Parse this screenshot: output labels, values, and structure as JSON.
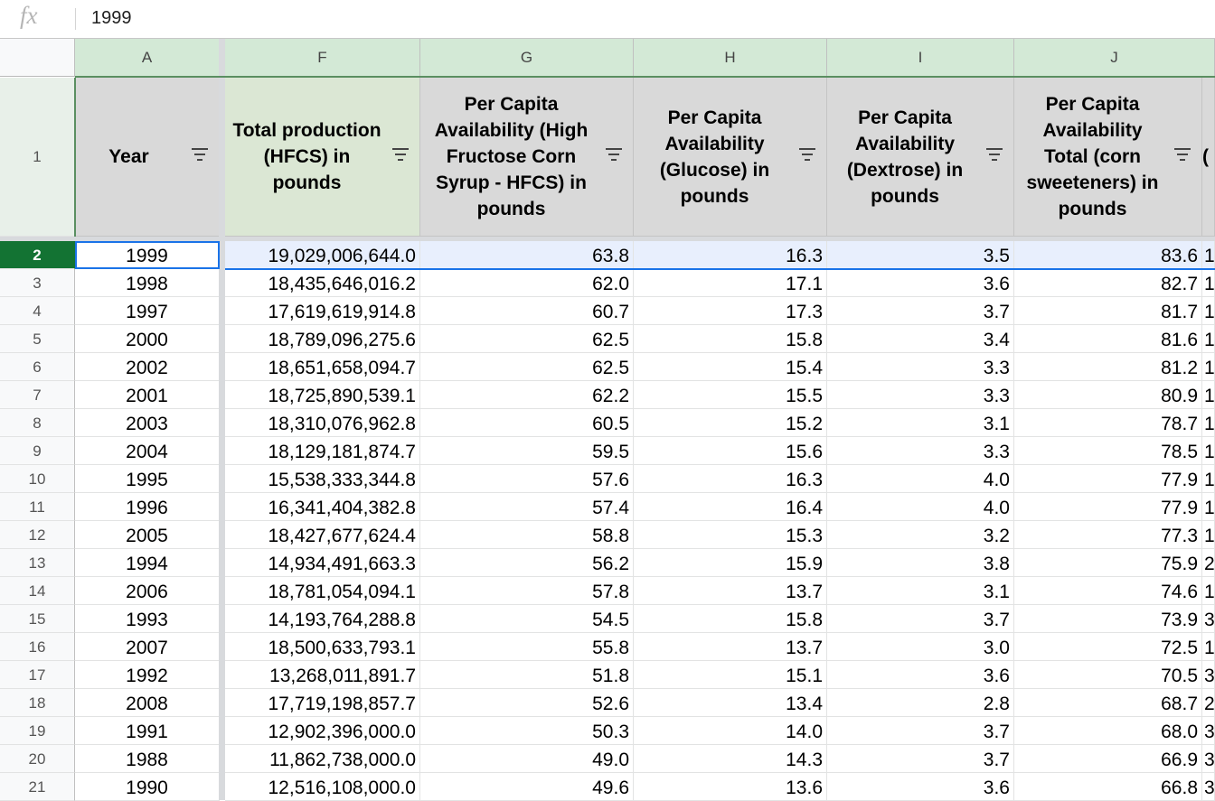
{
  "formula_bar": {
    "fx_label": "fx",
    "value": "1999"
  },
  "columns": [
    "A",
    "F",
    "G",
    "H",
    "I",
    "J"
  ],
  "headers": [
    "Year",
    "Total production (HFCS) in pounds",
    "Per Capita Availability (High Fructose Corn Syrup - HFCS) in pounds",
    "Per Capita Availability (Glucose) in pounds",
    "Per Capita Availability (Dextrose) in pounds",
    "Per Capita Availability Total (corn sweeteners) in pounds"
  ],
  "row_numbers": [
    "1",
    "2",
    "3",
    "4",
    "5",
    "6",
    "7",
    "8",
    "9",
    "10",
    "11",
    "12",
    "13",
    "14",
    "15",
    "16",
    "17",
    "18",
    "19",
    "20",
    "21"
  ],
  "rows": [
    [
      "1999",
      "19,029,006,644.0",
      "63.8",
      "16.3",
      "3.5",
      "83.6",
      "1"
    ],
    [
      "1998",
      "18,435,646,016.2",
      "62.0",
      "17.1",
      "3.6",
      "82.7",
      "1"
    ],
    [
      "1997",
      "17,619,619,914.8",
      "60.7",
      "17.3",
      "3.7",
      "81.7",
      "1"
    ],
    [
      "2000",
      "18,789,096,275.6",
      "62.5",
      "15.8",
      "3.4",
      "81.6",
      "1"
    ],
    [
      "2002",
      "18,651,658,094.7",
      "62.5",
      "15.4",
      "3.3",
      "81.2",
      "1"
    ],
    [
      "2001",
      "18,725,890,539.1",
      "62.2",
      "15.5",
      "3.3",
      "80.9",
      "1"
    ],
    [
      "2003",
      "18,310,076,962.8",
      "60.5",
      "15.2",
      "3.1",
      "78.7",
      "1"
    ],
    [
      "2004",
      "18,129,181,874.7",
      "59.5",
      "15.6",
      "3.3",
      "78.5",
      "1"
    ],
    [
      "1995",
      "15,538,333,344.8",
      "57.6",
      "16.3",
      "4.0",
      "77.9",
      "1"
    ],
    [
      "1996",
      "16,341,404,382.8",
      "57.4",
      "16.4",
      "4.0",
      "77.9",
      "1"
    ],
    [
      "2005",
      "18,427,677,624.4",
      "58.8",
      "15.3",
      "3.2",
      "77.3",
      "1"
    ],
    [
      "1994",
      "14,934,491,663.3",
      "56.2",
      "15.9",
      "3.8",
      "75.9",
      "2"
    ],
    [
      "2006",
      "18,781,054,094.1",
      "57.8",
      "13.7",
      "3.1",
      "74.6",
      "1"
    ],
    [
      "1993",
      "14,193,764,288.8",
      "54.5",
      "15.8",
      "3.7",
      "73.9",
      "3"
    ],
    [
      "2007",
      "18,500,633,793.1",
      "55.8",
      "13.7",
      "3.0",
      "72.5",
      "1"
    ],
    [
      "1992",
      "13,268,011,891.7",
      "51.8",
      "15.1",
      "3.6",
      "70.5",
      "3"
    ],
    [
      "2008",
      "17,719,198,857.7",
      "52.6",
      "13.4",
      "2.8",
      "68.7",
      "2"
    ],
    [
      "1991",
      "12,902,396,000.0",
      "50.3",
      "14.0",
      "3.7",
      "68.0",
      "3"
    ],
    [
      "1988",
      "11,862,738,000.0",
      "49.0",
      "14.3",
      "3.7",
      "66.9",
      "3"
    ],
    [
      "1990",
      "12,516,108,000.0",
      "49.6",
      "13.6",
      "3.6",
      "66.8",
      "3"
    ]
  ],
  "partial_header": "(",
  "colors": {
    "selected_row_header": "#137333",
    "selection_blue": "#1a73e8",
    "col_header_green": "#d3e9d6"
  }
}
